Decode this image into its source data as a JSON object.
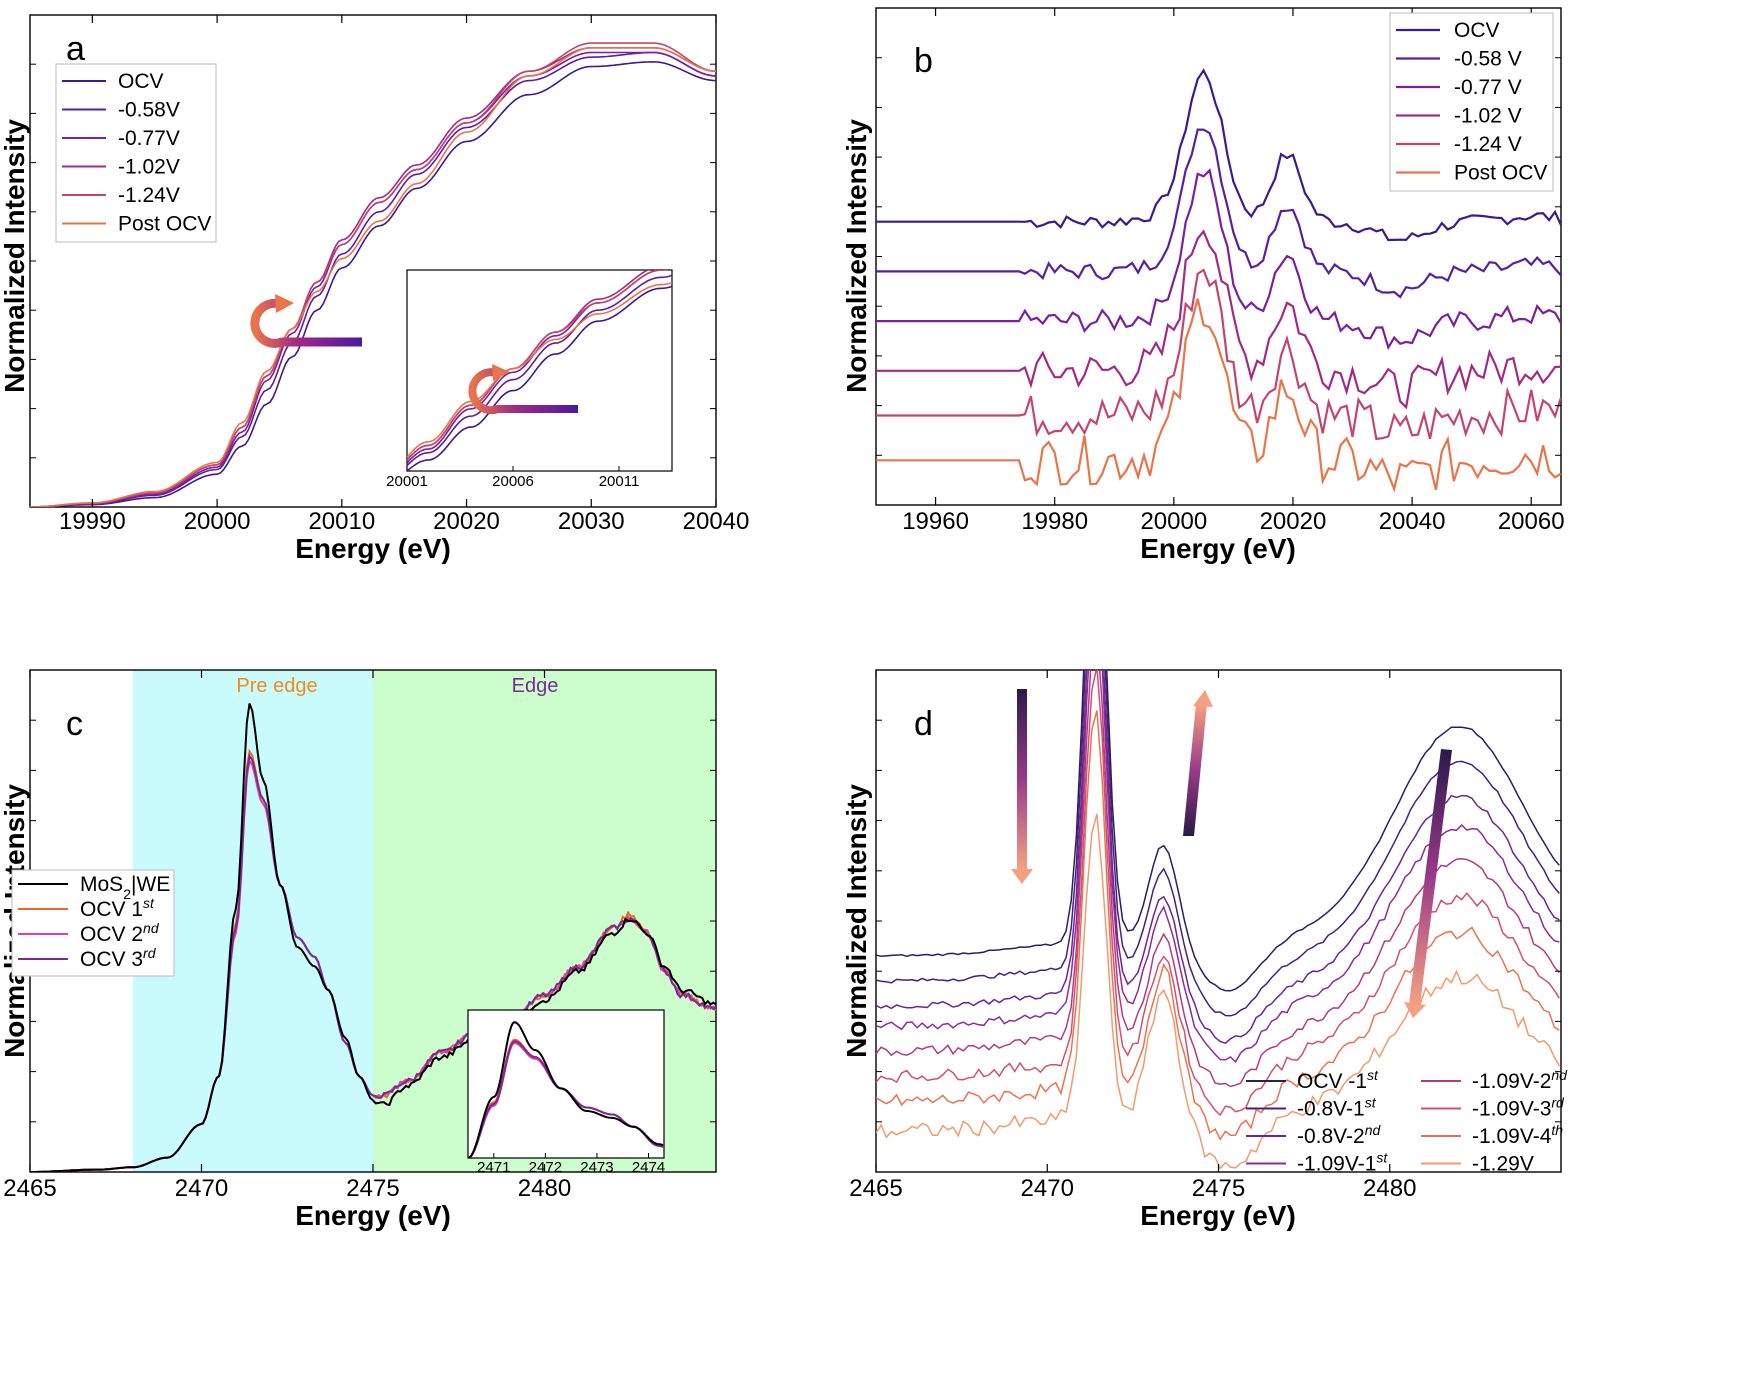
{
  "figure": {
    "panels": [
      {
        "id": "a",
        "label": "a"
      },
      {
        "id": "b",
        "label": "b"
      },
      {
        "id": "c",
        "label": "c"
      },
      {
        "id": "d",
        "label": "d"
      }
    ],
    "colors": {
      "ocv": "#3b1a8f",
      "v058": "#5a1ea0",
      "v077": "#7b1f9e",
      "v102": "#a02a86",
      "v124": "#c3456e",
      "post": "#e8754a",
      "c_mos2": "#000000",
      "c_ocv1": "#e8672a",
      "c_ocv2": "#e83aa3",
      "c_ocv3": "#7a2a95",
      "c_pre": "#c9fbfd",
      "c_edge": "#ccfdcc",
      "pre_text": "#f08a1f",
      "edge_text": "#7a2a95"
    }
  },
  "chart_data": [
    {
      "id": "a",
      "type": "line",
      "title": "",
      "xlabel": "Energy (eV)",
      "ylabel": "Normalized Intensity",
      "xlim": [
        19985,
        20040
      ],
      "ylim": [
        0,
        1.05
      ],
      "xticks": [
        19990,
        20000,
        20010,
        20020,
        20030,
        20040
      ],
      "grid": false,
      "legend": "top-left",
      "series": [
        {
          "name": "OCV",
          "x": [
            19985,
            19990,
            19995,
            20000,
            20002,
            20004,
            20006,
            20008,
            20010,
            20013,
            20016,
            20020,
            20025,
            20030,
            20035,
            20040
          ],
          "y": [
            0,
            0.005,
            0.02,
            0.07,
            0.13,
            0.22,
            0.32,
            0.42,
            0.51,
            0.6,
            0.68,
            0.78,
            0.88,
            0.94,
            0.95,
            0.91
          ]
        },
        {
          "name": "-0.58V",
          "x": [
            19985,
            19990,
            19995,
            20000,
            20002,
            20004,
            20006,
            20008,
            20010,
            20013,
            20016,
            20020,
            20025,
            20030,
            20035,
            20040
          ],
          "y": [
            0,
            0.006,
            0.025,
            0.08,
            0.15,
            0.25,
            0.35,
            0.45,
            0.54,
            0.63,
            0.71,
            0.81,
            0.91,
            0.96,
            0.97,
            0.92
          ]
        },
        {
          "name": "-0.77V",
          "x": [
            19985,
            19990,
            19995,
            20000,
            20002,
            20004,
            20006,
            20008,
            20010,
            20013,
            20016,
            20020,
            20025,
            20030,
            20035,
            20040
          ],
          "y": [
            0,
            0.007,
            0.027,
            0.085,
            0.16,
            0.27,
            0.37,
            0.47,
            0.56,
            0.65,
            0.72,
            0.82,
            0.92,
            0.97,
            0.97,
            0.92
          ]
        },
        {
          "name": "-1.02V",
          "x": [
            19985,
            19990,
            19995,
            20000,
            20002,
            20004,
            20006,
            20008,
            20010,
            20013,
            20016,
            20020,
            20025,
            20030,
            20035,
            20040
          ],
          "y": [
            0,
            0.008,
            0.03,
            0.09,
            0.17,
            0.28,
            0.38,
            0.48,
            0.57,
            0.66,
            0.73,
            0.83,
            0.93,
            0.98,
            0.98,
            0.93
          ]
        },
        {
          "name": "-1.24V",
          "x": [
            19985,
            19990,
            19995,
            20000,
            20002,
            20004,
            20006,
            20008,
            20010,
            20013,
            20016,
            20020,
            20025,
            20030,
            20035,
            20040
          ],
          "y": [
            0,
            0.008,
            0.03,
            0.09,
            0.17,
            0.28,
            0.38,
            0.48,
            0.56,
            0.65,
            0.72,
            0.82,
            0.93,
            0.99,
            0.99,
            0.93
          ]
        },
        {
          "name": "Post OCV",
          "x": [
            19985,
            19990,
            19995,
            20000,
            20002,
            20004,
            20006,
            20008,
            20010,
            20013,
            20016,
            20020,
            20025,
            20030,
            20035,
            20040
          ],
          "y": [
            0,
            0.009,
            0.033,
            0.095,
            0.18,
            0.29,
            0.38,
            0.46,
            0.53,
            0.61,
            0.69,
            0.8,
            0.92,
            0.98,
            0.98,
            0.93
          ]
        }
      ],
      "inset": {
        "xlim": [
          20001,
          20013.5
        ],
        "xticks": [
          20001,
          20006,
          20011
        ],
        "ylim": [
          0.1,
          0.65
        ]
      }
    },
    {
      "id": "b",
      "type": "line",
      "title": "",
      "xlabel": "Energy (eV)",
      "ylabel": "Normalized Intensity",
      "xlim": [
        19950,
        20065
      ],
      "ylim": [
        0,
        1
      ],
      "xticks": [
        19960,
        19980,
        20000,
        20020,
        20040,
        20060
      ],
      "grid": false,
      "legend": "top-right",
      "series": [
        {
          "name": "OCV",
          "offset": 0.57,
          "amp": 0.3,
          "noise": 0.012
        },
        {
          "name": "-0.58 V",
          "offset": 0.47,
          "amp": 0.3,
          "noise": 0.015
        },
        {
          "name": "-0.77 V",
          "offset": 0.37,
          "amp": 0.3,
          "noise": 0.02
        },
        {
          "name": "-1.02 V",
          "offset": 0.27,
          "amp": 0.3,
          "noise": 0.035
        },
        {
          "name": "-1.24 V",
          "offset": 0.18,
          "amp": 0.3,
          "noise": 0.04
        },
        {
          "name": "Post OCV",
          "offset": 0.09,
          "amp": 0.32,
          "noise": 0.045
        }
      ]
    },
    {
      "id": "c",
      "type": "line",
      "title": "",
      "xlabel": "Energy (eV)",
      "ylabel": "Normalized Intensity",
      "xlim": [
        2465,
        2485
      ],
      "ylim": [
        0,
        1.05
      ],
      "xticks": [
        2465,
        2470,
        2475,
        2480
      ],
      "grid": false,
      "legend": "center-left",
      "regions": [
        {
          "label": "Pre edge",
          "x": [
            2468,
            2475
          ]
        },
        {
          "label": "Edge",
          "x": [
            2475,
            2485
          ]
        }
      ],
      "series": [
        {
          "name": "MoS",
          "sub": "2",
          "suffix": "|WE",
          "sup": "",
          "x": [
            2465,
            2467,
            2468,
            2469,
            2470,
            2470.5,
            2471,
            2471.4,
            2471.8,
            2472.3,
            2472.8,
            2473.3,
            2473.7,
            2474.2,
            2474.6,
            2475,
            2475.3,
            2476,
            2477,
            2478,
            2479,
            2480,
            2481,
            2482,
            2482.5,
            2483,
            2483.5,
            2484,
            2485
          ],
          "y": [
            0,
            0.005,
            0.01,
            0.03,
            0.1,
            0.2,
            0.55,
            0.98,
            0.82,
            0.6,
            0.47,
            0.43,
            0.38,
            0.28,
            0.2,
            0.15,
            0.14,
            0.18,
            0.24,
            0.28,
            0.31,
            0.36,
            0.42,
            0.5,
            0.53,
            0.5,
            0.43,
            0.38,
            0.35
          ]
        },
        {
          "name": "OCV 1",
          "sub": "",
          "suffix": "",
          "sup": "st",
          "x": [
            2465,
            2467,
            2468,
            2469,
            2470,
            2470.5,
            2471,
            2471.4,
            2471.8,
            2472.3,
            2472.8,
            2473.3,
            2473.7,
            2474.2,
            2474.6,
            2475,
            2475.3,
            2476,
            2477,
            2478,
            2479,
            2480,
            2481,
            2482,
            2482.5,
            2483,
            2483.5,
            2484,
            2485
          ],
          "y": [
            0,
            0.005,
            0.01,
            0.03,
            0.1,
            0.2,
            0.52,
            0.88,
            0.78,
            0.6,
            0.49,
            0.45,
            0.38,
            0.27,
            0.2,
            0.16,
            0.16,
            0.19,
            0.25,
            0.29,
            0.32,
            0.37,
            0.43,
            0.51,
            0.54,
            0.5,
            0.42,
            0.37,
            0.34
          ]
        },
        {
          "name": "OCV 2",
          "sub": "",
          "suffix": "",
          "sup": "nd",
          "x": [
            2465,
            2467,
            2468,
            2469,
            2470,
            2470.5,
            2471,
            2471.4,
            2471.8,
            2472.3,
            2472.8,
            2473.3,
            2473.7,
            2474.2,
            2474.6,
            2475,
            2475.3,
            2476,
            2477,
            2478,
            2479,
            2480,
            2481,
            2482,
            2482.5,
            2483,
            2483.5,
            2484,
            2485
          ],
          "y": [
            0,
            0.005,
            0.01,
            0.03,
            0.1,
            0.2,
            0.5,
            0.86,
            0.77,
            0.6,
            0.49,
            0.45,
            0.38,
            0.27,
            0.2,
            0.16,
            0.16,
            0.19,
            0.25,
            0.29,
            0.32,
            0.37,
            0.43,
            0.51,
            0.53,
            0.5,
            0.42,
            0.37,
            0.34
          ]
        },
        {
          "name": "OCV 3",
          "sub": "",
          "suffix": "",
          "sup": "rd",
          "x": [
            2465,
            2467,
            2468,
            2469,
            2470,
            2470.5,
            2471,
            2471.4,
            2471.8,
            2472.3,
            2472.8,
            2473.3,
            2473.7,
            2474.2,
            2474.6,
            2475,
            2475.3,
            2476,
            2477,
            2478,
            2479,
            2480,
            2481,
            2482,
            2482.5,
            2483,
            2483.5,
            2484,
            2485
          ],
          "y": [
            0,
            0.005,
            0.01,
            0.03,
            0.1,
            0.2,
            0.51,
            0.87,
            0.78,
            0.6,
            0.49,
            0.45,
            0.38,
            0.27,
            0.2,
            0.16,
            0.16,
            0.19,
            0.25,
            0.29,
            0.32,
            0.37,
            0.43,
            0.51,
            0.53,
            0.5,
            0.42,
            0.37,
            0.34
          ]
        }
      ],
      "inset": {
        "xlim": [
          2470.5,
          2474.3
        ],
        "xticks": [
          2471,
          2472,
          2473,
          2474
        ],
        "ylim": [
          0.2,
          1.05
        ]
      }
    },
    {
      "id": "d",
      "type": "line",
      "title": "",
      "xlabel": "Energy (eV)",
      "ylabel": "Normalized Intensity",
      "xlim": [
        2465,
        2485
      ],
      "ylim": [
        0,
        1
      ],
      "xticks": [
        2465,
        2470,
        2475,
        2480
      ],
      "grid": false,
      "legend": "bottom-right",
      "series": [
        {
          "name": "OCV -1",
          "sup": "st",
          "offset": 0.43,
          "peak": 0.95,
          "shoulder": 0.2,
          "hump": 0.4
        },
        {
          "name": "-0.8V-1",
          "sup": "st",
          "offset": 0.38,
          "peak": 0.92,
          "shoulder": 0.2,
          "hump": 0.38
        },
        {
          "name": "-0.8V-2",
          "sup": "nd",
          "offset": 0.33,
          "peak": 0.88,
          "shoulder": 0.2,
          "hump": 0.36
        },
        {
          "name": "-1.09V-1",
          "sup": "st",
          "offset": 0.29,
          "peak": 0.85,
          "shoulder": 0.21,
          "hump": 0.34
        },
        {
          "name": "-1.09V-2",
          "sup": "nd",
          "offset": 0.24,
          "peak": 0.82,
          "shoulder": 0.21,
          "hump": 0.32
        },
        {
          "name": "-1.09V-3",
          "sup": "rd",
          "offset": 0.19,
          "peak": 0.79,
          "shoulder": 0.22,
          "hump": 0.3
        },
        {
          "name": "-1.09V-4",
          "sup": "th",
          "offset": 0.14,
          "peak": 0.75,
          "shoulder": 0.24,
          "hump": 0.28
        },
        {
          "name": "-1.29V",
          "sup": "",
          "offset": 0.08,
          "peak": 0.6,
          "shoulder": 0.26,
          "hump": 0.25
        }
      ]
    }
  ]
}
